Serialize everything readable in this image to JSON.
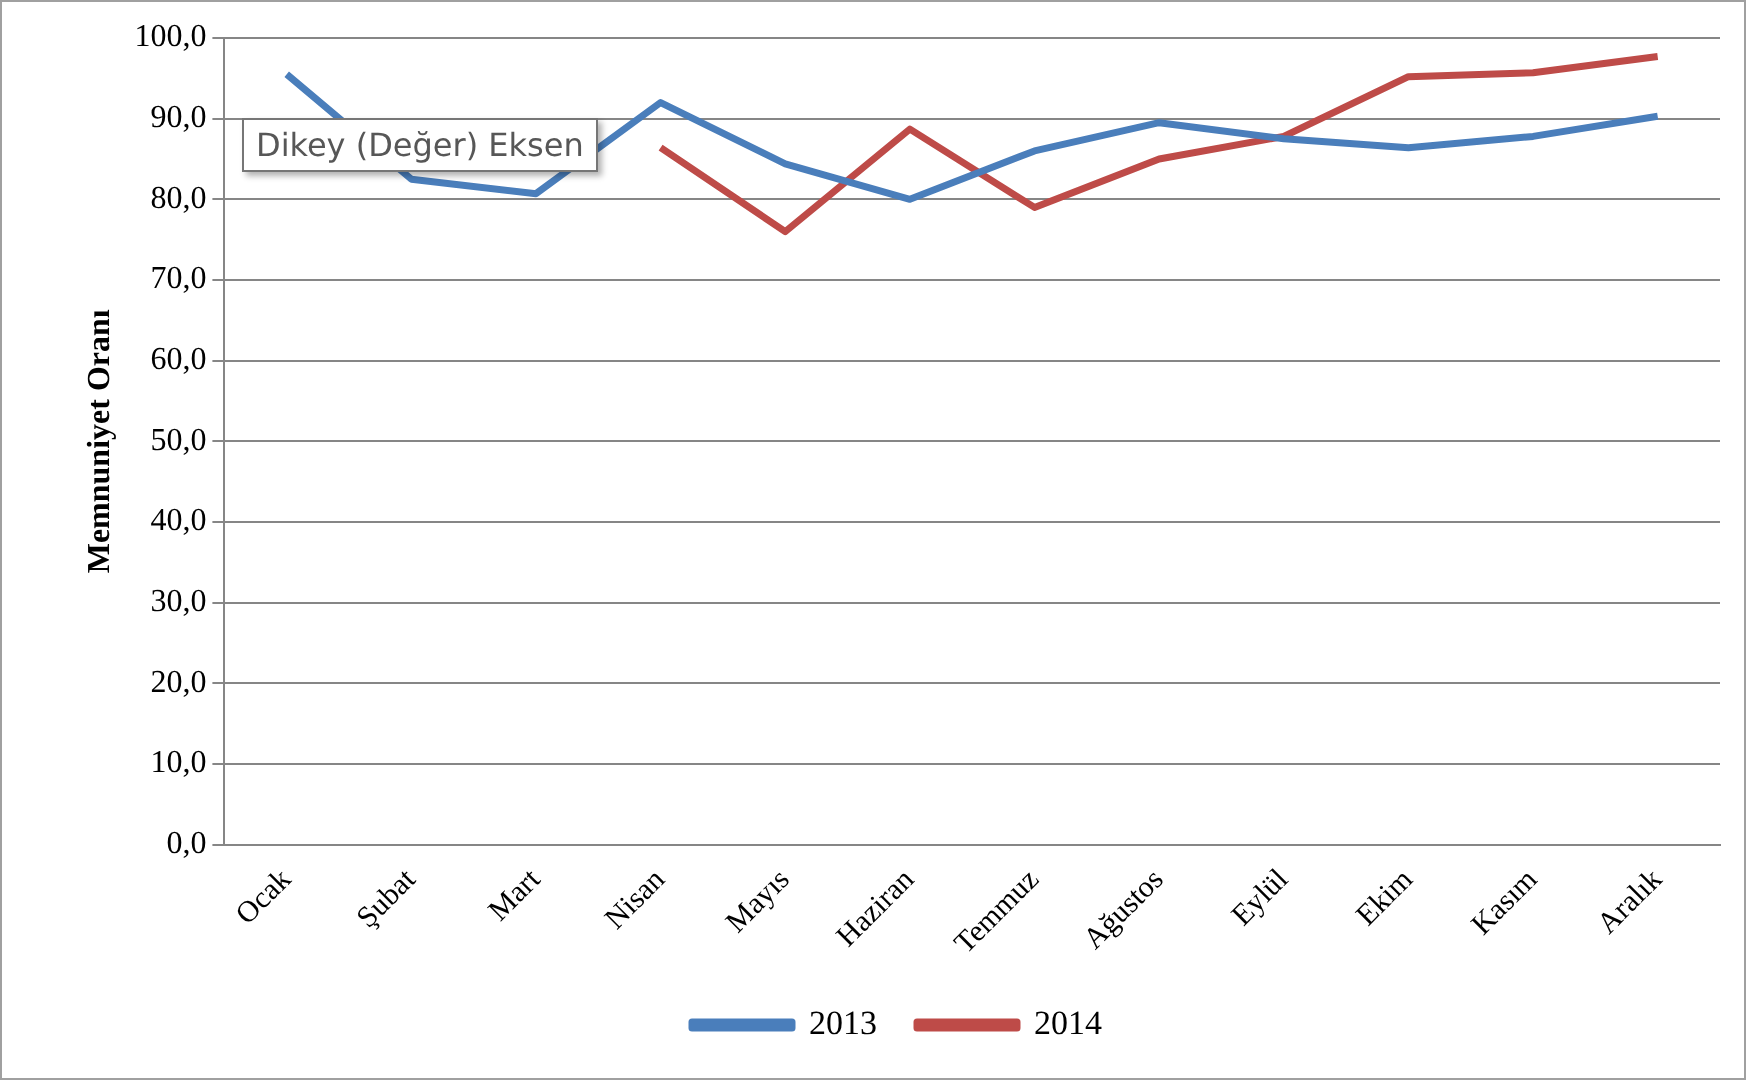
{
  "chart_data": {
    "type": "line",
    "ylabel": "Memnuniyet Oranı",
    "categories": [
      "Ocak",
      "Şubat",
      "Mart",
      "Nisan",
      "Mayıs",
      "Haziran",
      "Temmuz",
      "Ağustos",
      "Eylül",
      "Ekim",
      "Kasım",
      "Aralık"
    ],
    "series": [
      {
        "name": "2013",
        "color": "#4a7ebb",
        "values": [
          95.5,
          82.5,
          80.7,
          92,
          84.4,
          80,
          86,
          89.5,
          87.5,
          86.4,
          87.8,
          90.3
        ]
      },
      {
        "name": "2014",
        "color": "#be4b48",
        "values": [
          null,
          null,
          null,
          86.4,
          76,
          88.7,
          79,
          85,
          87.8,
          95.2,
          95.7,
          97.7
        ]
      }
    ],
    "ylim": [
      0,
      100
    ],
    "yticks": [
      {
        "value": 0,
        "label": "0,0"
      },
      {
        "value": 10,
        "label": "10,0"
      },
      {
        "value": 20,
        "label": "20,0"
      },
      {
        "value": 30,
        "label": "30,0"
      },
      {
        "value": 40,
        "label": "40,0"
      },
      {
        "value": 50,
        "label": "50,0"
      },
      {
        "value": 60,
        "label": "60,0"
      },
      {
        "value": 70,
        "label": "70,0"
      },
      {
        "value": 80,
        "label": "80,0"
      },
      {
        "value": 90,
        "label": "90,0"
      },
      {
        "value": 100,
        "label": "100,0"
      }
    ],
    "grid": "y",
    "legend": "bottom",
    "marker": "none",
    "line_style": "solid",
    "annotations": [
      "Dikey (Değer) Eksen"
    ]
  }
}
